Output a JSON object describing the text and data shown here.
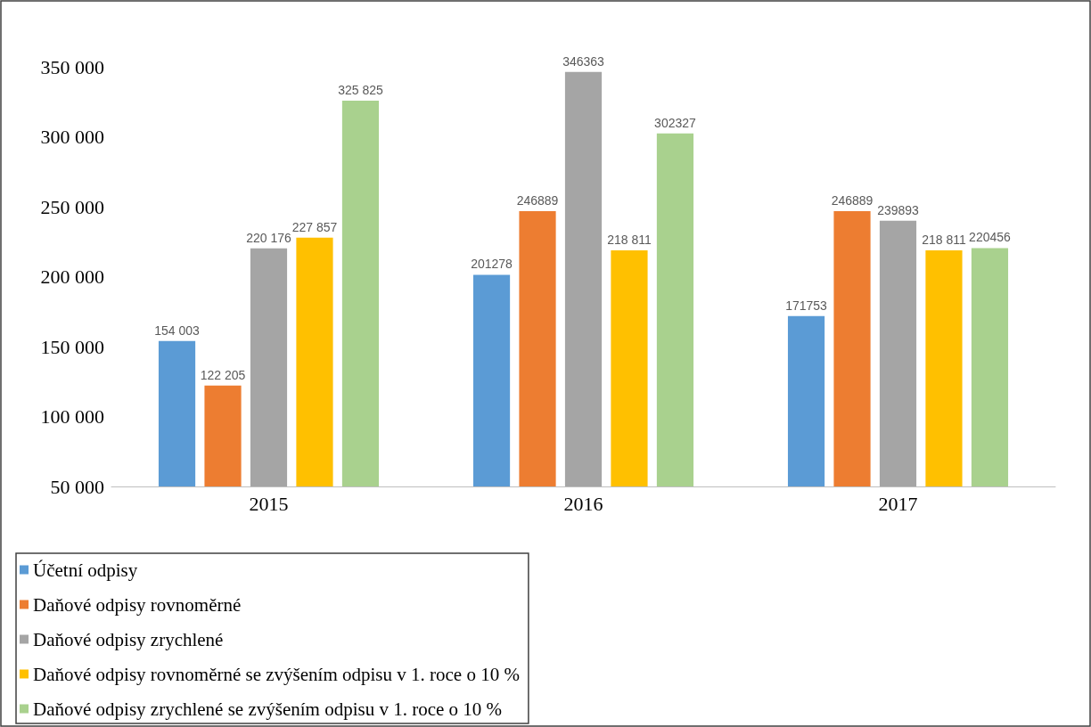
{
  "chart_data": {
    "type": "bar",
    "categories": [
      "2015",
      "2016",
      "2017"
    ],
    "series": [
      {
        "name": "Účetní odpisy",
        "color": "#5b9bd5",
        "values": [
          154003,
          201278,
          171753
        ],
        "value_labels": [
          "154 003",
          "201278",
          "171753"
        ]
      },
      {
        "name": "Daňové odpisy rovnoměrné",
        "color": "#ed7d31",
        "values": [
          122205,
          246889,
          246889
        ],
        "value_labels": [
          "122 205",
          "246889",
          "246889"
        ]
      },
      {
        "name": "Daňové odpisy zrychlené",
        "color": "#a5a5a5",
        "values": [
          220176,
          346363,
          239893
        ],
        "value_labels": [
          "220 176",
          "346363",
          "239893"
        ]
      },
      {
        "name": "Daňové odpisy rovnoměrné se zvýšením odpisu v 1. roce o 10 %",
        "color": "#ffc000",
        "values": [
          227857,
          218811,
          218811
        ],
        "value_labels": [
          "227 857",
          "218 811",
          "218 811"
        ]
      },
      {
        "name": "Daňové odpisy zrychlené se zvýšením odpisu v 1. roce o 10 %",
        "color": "#a9d18e",
        "values": [
          325825,
          302327,
          220456
        ],
        "value_labels": [
          "325 825",
          "302327",
          "220456"
        ]
      }
    ],
    "ylim": [
      50000,
      350000
    ],
    "yticks": [
      {
        "value": 50000,
        "label": "50 000"
      },
      {
        "value": 100000,
        "label": "100 000"
      },
      {
        "value": 150000,
        "label": "150 000"
      },
      {
        "value": 200000,
        "label": "200 000"
      },
      {
        "value": 250000,
        "label": "250 000"
      },
      {
        "value": 300000,
        "label": "300 000"
      },
      {
        "value": 350000,
        "label": "350 000"
      }
    ],
    "grid": false,
    "legend": "bottom left"
  }
}
